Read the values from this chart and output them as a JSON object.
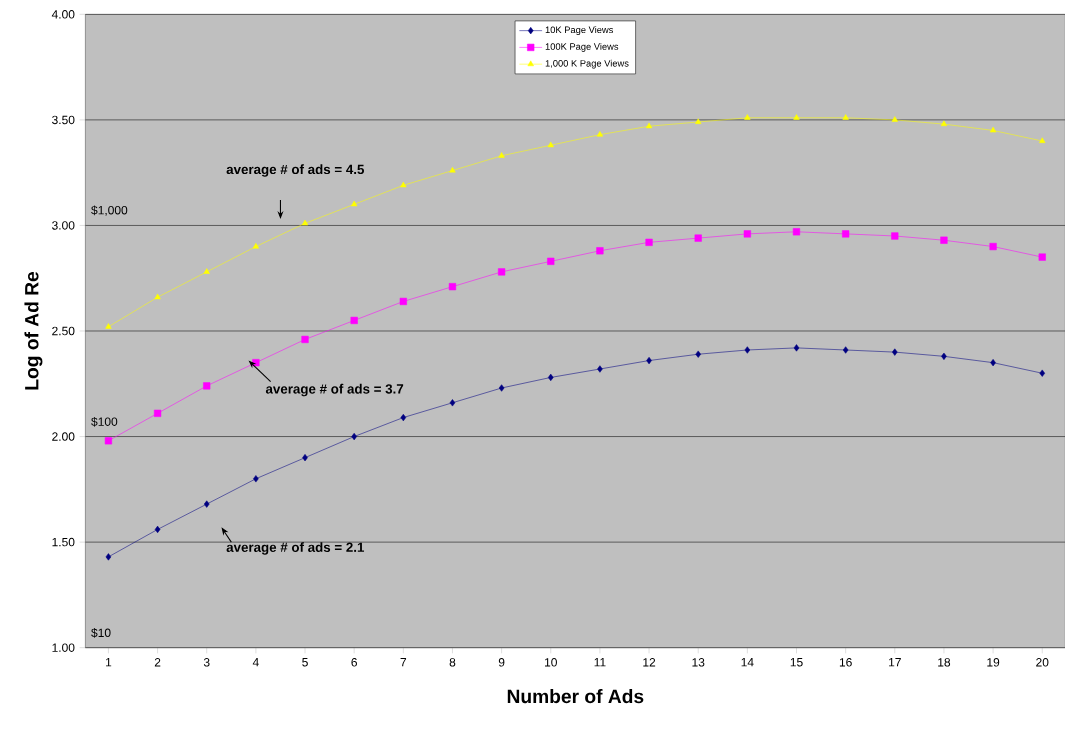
{
  "chart_data": {
    "type": "line",
    "xlabel": "Number of Ads",
    "ylabel": "Log of Ad Re",
    "categories": [
      "1",
      "2",
      "3",
      "4",
      "5",
      "6",
      "7",
      "8",
      "9",
      "10",
      "11",
      "12",
      "13",
      "14",
      "15",
      "16",
      "17",
      "18",
      "19",
      "20"
    ],
    "series": [
      {
        "name": "10K Page Views",
        "color": "#000080",
        "marker": "diamond",
        "values": [
          1.43,
          1.56,
          1.68,
          1.8,
          1.9,
          2.0,
          2.09,
          2.16,
          2.23,
          2.28,
          2.32,
          2.36,
          2.39,
          2.41,
          2.42,
          2.41,
          2.4,
          2.38,
          2.35,
          2.3
        ]
      },
      {
        "name": "100K Page Views",
        "color": "#ff00ff",
        "marker": "square",
        "values": [
          1.98,
          2.11,
          2.24,
          2.35,
          2.46,
          2.55,
          2.64,
          2.71,
          2.78,
          2.83,
          2.88,
          2.92,
          2.94,
          2.96,
          2.97,
          2.96,
          2.95,
          2.93,
          2.9,
          2.85
        ]
      },
      {
        "name": "1,000 K Page Views",
        "color": "#ffff00",
        "marker": "triangle",
        "values": [
          2.52,
          2.66,
          2.78,
          2.9,
          3.01,
          3.1,
          3.19,
          3.26,
          3.33,
          3.38,
          3.43,
          3.47,
          3.49,
          3.51,
          3.51,
          3.51,
          3.5,
          3.48,
          3.45,
          3.4
        ]
      }
    ],
    "ylim": [
      1.0,
      4.0
    ],
    "yticks": [
      {
        "value": 1.0,
        "label": "1.00"
      },
      {
        "value": 1.5,
        "label": "1.50"
      },
      {
        "value": 2.0,
        "label": "2.00"
      },
      {
        "value": 2.5,
        "label": "2.50"
      },
      {
        "value": 3.0,
        "label": "3.00"
      },
      {
        "value": 3.5,
        "label": "3.50"
      },
      {
        "value": 4.0,
        "label": "4.00"
      }
    ],
    "grid": "y",
    "legend": "top",
    "annotations": [
      "average # of ads = 4.5",
      "average # of ads = 3.7",
      "average # of ads = 2.1",
      "$1,000",
      "$100",
      "$10"
    ]
  }
}
